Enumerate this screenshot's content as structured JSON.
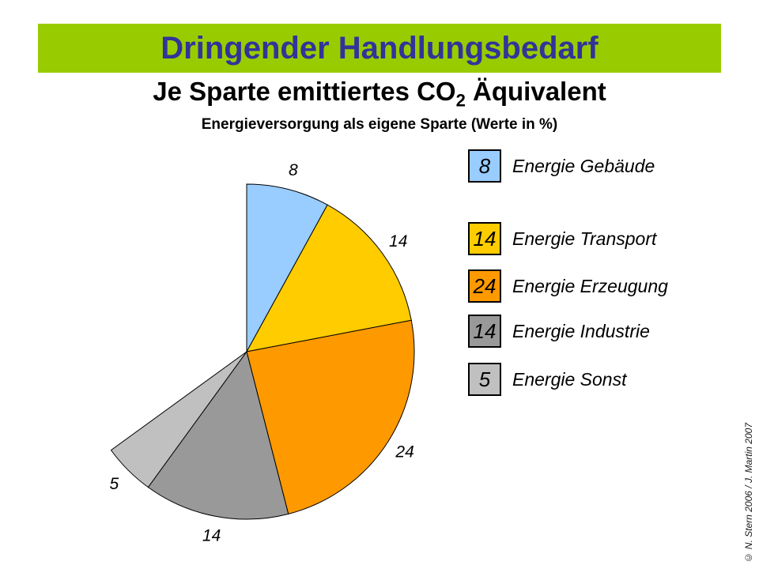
{
  "banner": {
    "title": "Dringender Handlungsbedarf",
    "bg_color": "#99CC00",
    "text_color": "#333399"
  },
  "title": {
    "prefix": "Je Sparte emittiertes CO",
    "subscript": "2",
    "suffix": " Äquivalent"
  },
  "subtitle": "Energieversorgung als eigene Sparte (Werte in %)",
  "copyright": "© N. Stern 2006 / J. Martin 2007",
  "chart_data": {
    "type": "pie",
    "title": "Je Sparte emittiertes CO2 Äquivalent",
    "subtitle": "Energieversorgung als eigene Sparte (Werte in %)",
    "unit": "%",
    "start_angle_deg": 0,
    "direction": "clockwise",
    "full_circle_total": 100,
    "values_sum": 65,
    "note": "slices cover 65% of the circle; remaining 35% is blank (white)",
    "slices": [
      {
        "label": "Energie Gebäude",
        "value": 8,
        "color": "#99CCFF"
      },
      {
        "label": "Energie Transport",
        "value": 14,
        "color": "#FFCC00"
      },
      {
        "label": "Energie Erzeugung",
        "value": 24,
        "color": "#FF9900"
      },
      {
        "label": "Energie Industrie",
        "value": 14,
        "color": "#999999"
      },
      {
        "label": "Energie Sonst",
        "value": 5,
        "color": "#C0C0C0"
      }
    ],
    "legend_position": "right",
    "slice_labels_shown": true,
    "outline_color": "#000000"
  }
}
